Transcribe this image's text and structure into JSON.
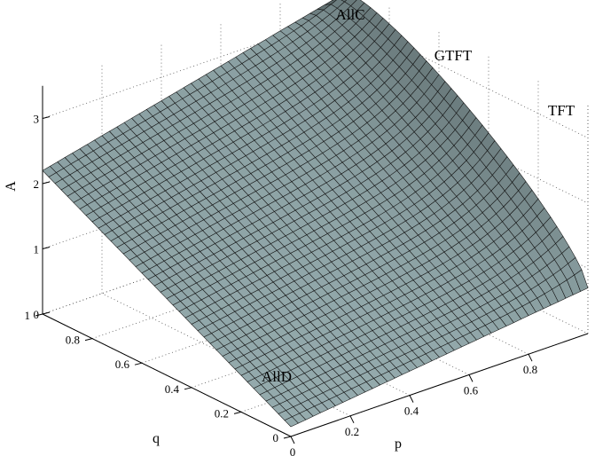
{
  "chart_data": {
    "type": "surface",
    "xlabel": "p",
    "ylabel": "q",
    "zlabel": "A",
    "x_ticks": [
      "0",
      "0.2",
      "0.4",
      "0.6",
      "0.8"
    ],
    "y_ticks": [
      "0",
      "0.2",
      "0.4",
      "0.6",
      "0.8",
      "1"
    ],
    "z_ticks": [
      "0",
      "1",
      "2",
      "3"
    ],
    "xlim": [
      0,
      1
    ],
    "ylim": [
      0,
      1
    ],
    "zlim": [
      0,
      3.5
    ],
    "grid": true,
    "surface_color": "#a9c3c6",
    "highlight_color": "#eef6f5",
    "grid_resolution": 40,
    "corner_values": [
      {
        "p": 0,
        "q": 0,
        "A": 0.15
      },
      {
        "p": 1,
        "q": 0,
        "A": 0.7
      },
      {
        "p": 0,
        "q": 1,
        "A": 2.2
      },
      {
        "p": 1,
        "q": 1,
        "A": 3.3
      }
    ],
    "edge_values": [
      {
        "p": 1,
        "q": 0.5,
        "A": 2.6
      }
    ],
    "annotations": [
      {
        "text": "AllC",
        "p": 1,
        "q": 1
      },
      {
        "text": "GTFT",
        "p": 1,
        "q": 0.6
      },
      {
        "text": "TFT",
        "p": 1,
        "q": 0
      },
      {
        "text": "AllD",
        "p": 0,
        "q": 0
      }
    ]
  }
}
